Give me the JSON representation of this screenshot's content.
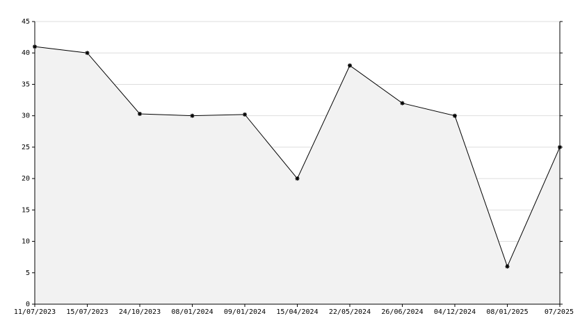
{
  "chart_data": {
    "type": "area",
    "categories": [
      "11/07/2023",
      "15/07/2023",
      "24/10/2023",
      "08/01/2024",
      "09/01/2024",
      "15/04/2024",
      "22/05/2024",
      "26/06/2024",
      "04/12/2024",
      "08/01/2025",
      "07/2025"
    ],
    "values": [
      41,
      40,
      30.3,
      30,
      30.2,
      20,
      38,
      32,
      30,
      6,
      25
    ],
    "color": "#000000",
    "fill_color": "#f2f2f2",
    "ylim": [
      0,
      45
    ],
    "yticks": [
      0,
      5,
      10,
      15,
      20,
      25,
      30,
      35,
      40,
      45
    ],
    "grid": true
  }
}
